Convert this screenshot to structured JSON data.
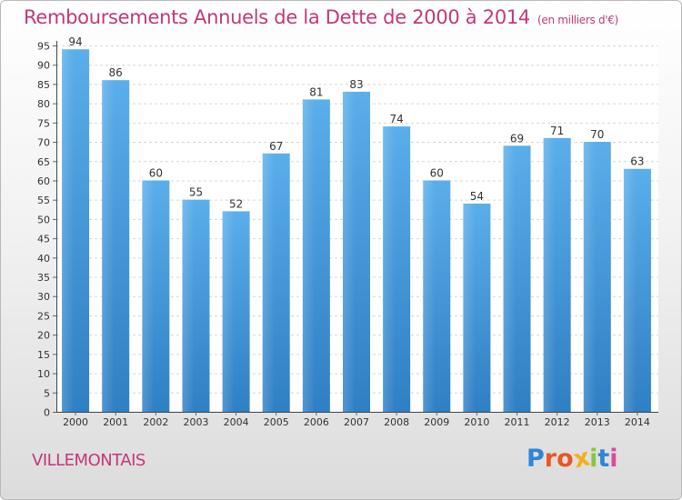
{
  "chart_data": {
    "type": "bar",
    "title": "Remboursements Annuels de la Dette de 2000 à 2014",
    "subtitle": "(en milliers d'€)",
    "categories": [
      "2000",
      "2001",
      "2002",
      "2003",
      "2004",
      "2005",
      "2006",
      "2007",
      "2008",
      "2009",
      "2010",
      "2011",
      "2012",
      "2013",
      "2014"
    ],
    "values": [
      94,
      86,
      60,
      55,
      52,
      67,
      81,
      83,
      74,
      60,
      54,
      69,
      71,
      70,
      63
    ],
    "ylim": [
      0,
      95
    ],
    "yticks": [
      0,
      5,
      10,
      15,
      20,
      25,
      30,
      35,
      40,
      45,
      50,
      55,
      60,
      65,
      70,
      75,
      80,
      85,
      90,
      95
    ],
    "grid": true,
    "data_labels": true,
    "bar_color": "#4a9de0",
    "label_color": "#333333",
    "title_color": "#c2387a"
  },
  "footer": {
    "commune": "VILLEMONTAIS",
    "logo_text": "Proxiti",
    "logo_colors": [
      "#2e86d6",
      "#e8572a",
      "#e8572a",
      "#f2b01e",
      "#8bc53f",
      "#2e86d6",
      "#d94da0"
    ]
  }
}
